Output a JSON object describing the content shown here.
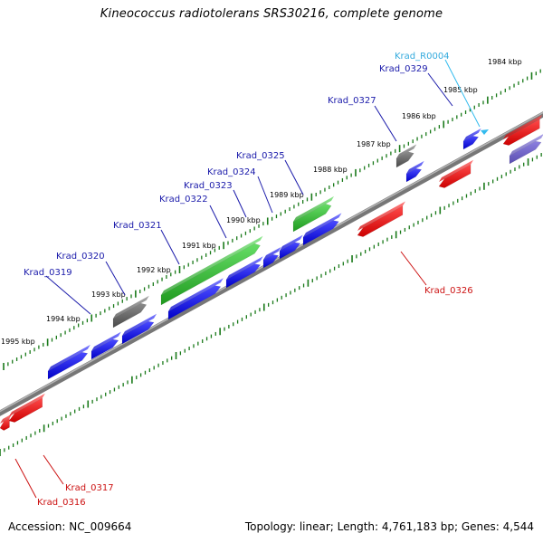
{
  "title": "Kineococcus radiotolerans SRS30216, complete genome",
  "footer": {
    "accession": "Accession: NC_009664",
    "stats": "Topology: linear; Length: 4,761,183 bp; Genes: 4,544"
  },
  "colors": {
    "forward_cds": "#1010dd",
    "reverse_cds": "#ee1111",
    "green_cds": "#33bb33",
    "grey_feature": "#666666",
    "rna": "#33bbee",
    "label_forward": "#1a1aaa",
    "label_reverse": "#cc1111",
    "label_rna": "#33aadd",
    "tick": "#1a7a1a"
  },
  "kbp_ticks": [
    "1984 kbp",
    "1985 kbp",
    "1986 kbp",
    "1987 kbp",
    "1988 kbp",
    "1989 kbp",
    "1990 kbp",
    "1991 kbp",
    "1992 kbp",
    "1993 kbp",
    "1994 kbp",
    "1995 kbp"
  ],
  "gene_labels": {
    "forward": [
      "Krad_0319",
      "Krad_0320",
      "Krad_0321",
      "Krad_0322",
      "Krad_0323",
      "Krad_0324",
      "Krad_0325",
      "Krad_0327",
      "Krad_0329"
    ],
    "rna": [
      "Krad_R0004"
    ],
    "reverse": [
      "Krad_0326",
      "Krad_0317",
      "Krad_0316"
    ]
  }
}
